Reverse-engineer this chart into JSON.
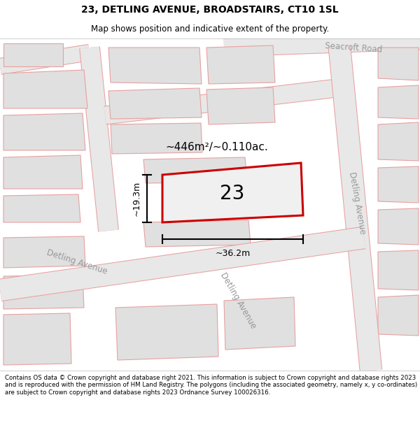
{
  "title": "23, DETLING AVENUE, BROADSTAIRS, CT10 1SL",
  "subtitle": "Map shows position and indicative extent of the property.",
  "footer": "Contains OS data © Crown copyright and database right 2021. This information is subject to Crown copyright and database rights 2023 and is reproduced with the permission of HM Land Registry. The polygons (including the associated geometry, namely x, y co-ordinates) are subject to Crown copyright and database rights 2023 Ordnance Survey 100026316.",
  "area_text": "~446m²/~0.110ac.",
  "width_text": "~36.2m",
  "height_text": "~19.3m",
  "number_text": "23",
  "road_label_left": "Detling Avenue",
  "road_label_bottom": "Detling Avenue",
  "road_label_right": "Detling Avenue",
  "seacroft": "Seacroft Road",
  "road_fill": "#e8e8e8",
  "road_edge": "#e8a0a0",
  "block_fill": "#e0e0e0",
  "block_edge": "#e8a0a0",
  "prop_fill": "#f0f0f0",
  "prop_edge": "#cc0000"
}
